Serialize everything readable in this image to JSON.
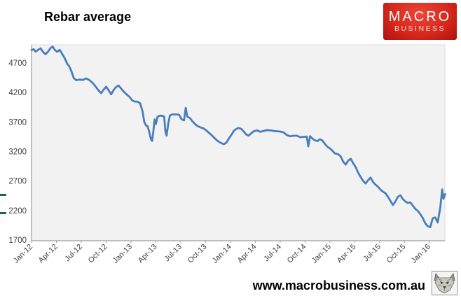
{
  "header": {
    "title": "Rebar average"
  },
  "logo": {
    "line1": "MACRO",
    "line2": "BUSINESS",
    "bg_color": "#d42619",
    "text_color": "#ffffff"
  },
  "footer": {
    "url": "www.macrobusiness.com.au",
    "stamp_icon": "wolf-logo-icon"
  },
  "decorations": {
    "left_edge_marks_color": "#1d6b41"
  },
  "chart_data": {
    "type": "line",
    "title": "Rebar average",
    "series_name": "Rebar average",
    "line_color": "#4a7ebb",
    "line_width": 2.8,
    "plot_bg": "#f2f2f2",
    "axis_color": "#9d9d9d",
    "panel_border_color": "#dcdcdc",
    "tick_label_color": "#404040",
    "legend": "none",
    "grid": false,
    "xlabel": "",
    "ylabel": "",
    "ylim": [
      1700,
      5020
    ],
    "yticks": [
      1700,
      2200,
      2700,
      3200,
      3700,
      4200,
      4700
    ],
    "x_months_max": 49.87,
    "xticks_months": [
      0,
      3,
      6,
      9,
      12,
      15,
      18,
      21,
      24,
      27,
      30,
      33,
      36,
      39,
      42,
      45,
      48
    ],
    "xtick_labels": [
      "Jan-12",
      "Apr-12",
      "Jul-12",
      "Oct-12",
      "Jan-13",
      "Apr-13",
      "Jul-13",
      "Oct-13",
      "Jan-14",
      "Apr-14",
      "Jul-14",
      "Oct-14",
      "Jan-15",
      "Apr-15",
      "Jul-15",
      "Oct-15",
      "Jan-16"
    ],
    "points": [
      [
        0,
        4930
      ],
      [
        0.25,
        4945
      ],
      [
        0.5,
        4905
      ],
      [
        0.8,
        4935
      ],
      [
        1.1,
        4960
      ],
      [
        1.4,
        4895
      ],
      [
        1.7,
        4860
      ],
      [
        2.0,
        4905
      ],
      [
        2.3,
        4965
      ],
      [
        2.55,
        4990
      ],
      [
        2.8,
        4935
      ],
      [
        3.1,
        4900
      ],
      [
        3.4,
        4935
      ],
      [
        3.7,
        4865
      ],
      [
        4.0,
        4795
      ],
      [
        4.3,
        4700
      ],
      [
        4.55,
        4655
      ],
      [
        4.8,
        4575
      ],
      [
        5.1,
        4455
      ],
      [
        5.4,
        4420
      ],
      [
        5.8,
        4430
      ],
      [
        6.2,
        4425
      ],
      [
        6.6,
        4450
      ],
      [
        7.0,
        4420
      ],
      [
        7.4,
        4370
      ],
      [
        7.8,
        4300
      ],
      [
        8.1,
        4245
      ],
      [
        8.4,
        4200
      ],
      [
        8.7,
        4260
      ],
      [
        9.0,
        4310
      ],
      [
        9.3,
        4250
      ],
      [
        9.6,
        4180
      ],
      [
        9.9,
        4250
      ],
      [
        10.2,
        4305
      ],
      [
        10.5,
        4330
      ],
      [
        10.8,
        4280
      ],
      [
        11.1,
        4230
      ],
      [
        11.5,
        4175
      ],
      [
        11.8,
        4140
      ],
      [
        12.1,
        4085
      ],
      [
        12.4,
        4060
      ],
      [
        12.8,
        4055
      ],
      [
        13.1,
        4030
      ],
      [
        13.4,
        3890
      ],
      [
        13.6,
        3715
      ],
      [
        13.8,
        3655
      ],
      [
        14.0,
        3640
      ],
      [
        14.2,
        3545
      ],
      [
        14.4,
        3420
      ],
      [
        14.55,
        3390
      ],
      [
        14.7,
        3555
      ],
      [
        14.85,
        3755
      ],
      [
        15.0,
        3675
      ],
      [
        15.2,
        3800
      ],
      [
        15.5,
        3820
      ],
      [
        15.8,
        3815
      ],
      [
        16.0,
        3805
      ],
      [
        16.15,
        3550
      ],
      [
        16.3,
        3480
      ],
      [
        16.5,
        3690
      ],
      [
        16.7,
        3825
      ],
      [
        17.0,
        3840
      ],
      [
        17.4,
        3840
      ],
      [
        17.8,
        3835
      ],
      [
        18.1,
        3760
      ],
      [
        18.4,
        3740
      ],
      [
        18.6,
        3950
      ],
      [
        18.8,
        3800
      ],
      [
        19.1,
        3780
      ],
      [
        19.4,
        3725
      ],
      [
        19.7,
        3680
      ],
      [
        20.0,
        3645
      ],
      [
        20.4,
        3620
      ],
      [
        20.8,
        3600
      ],
      [
        21.2,
        3555
      ],
      [
        21.6,
        3505
      ],
      [
        22.0,
        3450
      ],
      [
        22.4,
        3395
      ],
      [
        22.8,
        3360
      ],
      [
        23.2,
        3335
      ],
      [
        23.5,
        3360
      ],
      [
        23.8,
        3430
      ],
      [
        24.1,
        3490
      ],
      [
        24.4,
        3560
      ],
      [
        24.7,
        3595
      ],
      [
        25.0,
        3610
      ],
      [
        25.3,
        3595
      ],
      [
        25.6,
        3550
      ],
      [
        25.9,
        3500
      ],
      [
        26.2,
        3480
      ],
      [
        26.5,
        3520
      ],
      [
        26.8,
        3555
      ],
      [
        27.2,
        3570
      ],
      [
        27.6,
        3545
      ],
      [
        28.0,
        3560
      ],
      [
        28.4,
        3575
      ],
      [
        28.8,
        3570
      ],
      [
        29.2,
        3560
      ],
      [
        29.6,
        3555
      ],
      [
        30.0,
        3550
      ],
      [
        30.4,
        3535
      ],
      [
        30.8,
        3490
      ],
      [
        31.2,
        3470
      ],
      [
        31.6,
        3478
      ],
      [
        32.0,
        3480
      ],
      [
        32.4,
        3455
      ],
      [
        32.8,
        3460
      ],
      [
        33.2,
        3465
      ],
      [
        33.4,
        3300
      ],
      [
        33.6,
        3470
      ],
      [
        33.9,
        3430
      ],
      [
        34.2,
        3400
      ],
      [
        34.5,
        3390
      ],
      [
        34.8,
        3420
      ],
      [
        35.1,
        3395
      ],
      [
        35.4,
        3340
      ],
      [
        35.7,
        3290
      ],
      [
        36.0,
        3265
      ],
      [
        36.3,
        3225
      ],
      [
        36.6,
        3180
      ],
      [
        37.0,
        3165
      ],
      [
        37.3,
        3130
      ],
      [
        37.6,
        3040
      ],
      [
        37.9,
        2990
      ],
      [
        38.2,
        3055
      ],
      [
        38.5,
        3090
      ],
      [
        38.8,
        3015
      ],
      [
        39.1,
        2950
      ],
      [
        39.4,
        2855
      ],
      [
        39.7,
        2780
      ],
      [
        40.0,
        2715
      ],
      [
        40.3,
        2670
      ],
      [
        40.6,
        2725
      ],
      [
        40.9,
        2770
      ],
      [
        41.2,
        2695
      ],
      [
        41.5,
        2650
      ],
      [
        41.8,
        2615
      ],
      [
        42.1,
        2565
      ],
      [
        42.4,
        2530
      ],
      [
        42.7,
        2505
      ],
      [
        43.0,
        2445
      ],
      [
        43.3,
        2375
      ],
      [
        43.6,
        2305
      ],
      [
        43.9,
        2365
      ],
      [
        44.2,
        2445
      ],
      [
        44.5,
        2470
      ],
      [
        44.8,
        2405
      ],
      [
        45.1,
        2365
      ],
      [
        45.4,
        2340
      ],
      [
        45.7,
        2350
      ],
      [
        46.0,
        2295
      ],
      [
        46.3,
        2240
      ],
      [
        46.6,
        2205
      ],
      [
        46.9,
        2150
      ],
      [
        47.2,
        2085
      ],
      [
        47.5,
        1995
      ],
      [
        47.8,
        1945
      ],
      [
        48.1,
        1930
      ],
      [
        48.4,
        2080
      ],
      [
        48.7,
        2095
      ],
      [
        49.0,
        2010
      ],
      [
        49.3,
        2250
      ],
      [
        49.55,
        2570
      ],
      [
        49.7,
        2410
      ],
      [
        49.9,
        2490
      ]
    ]
  }
}
